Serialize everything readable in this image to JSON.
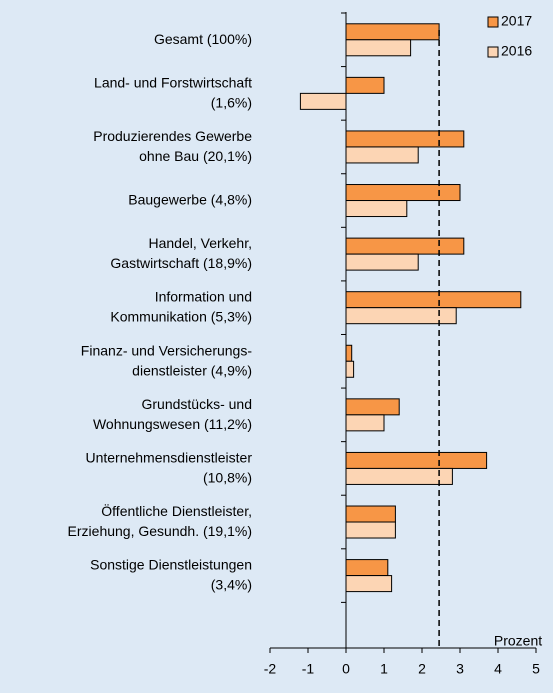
{
  "chart_data": {
    "type": "hbar",
    "categories": [
      [
        "Gesamt (100%)"
      ],
      [
        "Land- und Forstwirtschaft",
        "(1,6%)"
      ],
      [
        "Produzierendes Gewerbe",
        "ohne Bau (20,1%)"
      ],
      [
        "Baugewerbe (4,8%)"
      ],
      [
        "Handel, Verkehr,",
        "Gastwirtschaft (18,9%)"
      ],
      [
        "Information und",
        "Kommunikation (5,3%)"
      ],
      [
        "Finanz- und Versicherungs-",
        "dienstleister (4,9%)"
      ],
      [
        "Grundstücks- und",
        "Wohnungswesen (11,2%)"
      ],
      [
        "Unternehmensdienstleister",
        "(10,8%)"
      ],
      [
        "Öffentliche Dienstleister,",
        "Erziehung, Gesundh. (19,1%)"
      ],
      [
        "Sonstige Dienstleistungen",
        "(3,4%)"
      ]
    ],
    "series": [
      {
        "name": "2017",
        "color": "#f79646",
        "values": [
          2.45,
          1.0,
          3.1,
          3.0,
          3.1,
          4.6,
          0.15,
          1.4,
          3.7,
          1.3,
          1.1
        ]
      },
      {
        "name": "2016",
        "color": "#fcd5b4",
        "values": [
          1.7,
          -1.2,
          1.9,
          1.6,
          1.9,
          2.9,
          0.2,
          1.0,
          2.8,
          1.3,
          1.2
        ]
      }
    ],
    "x_label": "Prozent",
    "xlim": [
      -2,
      5
    ],
    "xticks": [
      -2,
      -1,
      0,
      1,
      2,
      3,
      4,
      5
    ],
    "reference_value": 2.45,
    "legend": "top-right"
  }
}
